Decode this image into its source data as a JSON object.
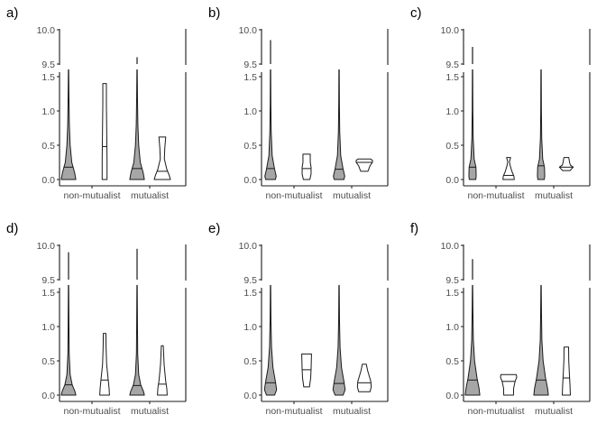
{
  "colors": {
    "mutualist_group_fill": "#a6a6a6",
    "comparison_fill": "#ffffff",
    "stroke": "#1a1a1a",
    "tick_text": "#4d4d4d"
  },
  "chart_data": [
    {
      "type": "violin",
      "panel_label": "a)",
      "categories": [
        "non-mutualist",
        "mutualist"
      ],
      "y_upper_ticks": [
        "9.5",
        "10.0"
      ],
      "y_lower_ticks": [
        "0.0",
        "0.5",
        "1.0",
        "1.5"
      ],
      "y_upper_range": [
        9.5,
        10.0
      ],
      "y_lower_range": [
        0.0,
        1.5
      ],
      "violins": [
        {
          "category": "non-mutualist",
          "fill": "filled",
          "min": 0.0,
          "max": 1.6,
          "median": 0.18,
          "profile": [
            [
              0,
              0.9
            ],
            [
              0.1,
              0.75
            ],
            [
              0.25,
              0.4
            ],
            [
              0.5,
              0.2
            ],
            [
              0.8,
              0.1
            ],
            [
              1.2,
              0.05
            ],
            [
              1.6,
              0.02
            ]
          ]
        },
        {
          "category": "non-mutualist",
          "fill": "open",
          "min": 0.0,
          "max": 1.4,
          "median": 0.48,
          "profile": [
            [
              0,
              0.3
            ],
            [
              0.3,
              0.3
            ],
            [
              0.7,
              0.26
            ],
            [
              1.1,
              0.22
            ],
            [
              1.4,
              0.22
            ]
          ]
        },
        {
          "category": "mutualist",
          "fill": "filled",
          "min": 0.0,
          "max": 1.6,
          "upper_max": 9.6,
          "median": 0.16,
          "profile": [
            [
              0,
              0.9
            ],
            [
              0.1,
              0.75
            ],
            [
              0.25,
              0.4
            ],
            [
              0.5,
              0.2
            ],
            [
              0.8,
              0.1
            ],
            [
              1.2,
              0.05
            ],
            [
              1.6,
              0.02
            ]
          ]
        },
        {
          "category": "mutualist",
          "fill": "open",
          "min": 0.0,
          "max": 0.62,
          "median": 0.12,
          "profile": [
            [
              0,
              1.0
            ],
            [
              0.06,
              0.85
            ],
            [
              0.15,
              0.55
            ],
            [
              0.3,
              0.25
            ],
            [
              0.45,
              0.3
            ],
            [
              0.62,
              0.42
            ]
          ]
        }
      ]
    },
    {
      "type": "violin",
      "panel_label": "b)",
      "categories": [
        "non-mutualist",
        "mutualist"
      ],
      "y_upper_ticks": [
        "9.5",
        "10.0"
      ],
      "y_lower_ticks": [
        "0.0",
        "0.5",
        "1.0",
        "1.5"
      ],
      "y_upper_range": [
        9.5,
        10.0
      ],
      "y_lower_range": [
        0.0,
        1.5
      ],
      "violins": [
        {
          "category": "non-mutualist",
          "fill": "filled",
          "min": 0.0,
          "max": 1.6,
          "upper_max": 9.85,
          "median": 0.16,
          "profile": [
            [
              0,
              0.6
            ],
            [
              0.05,
              0.7
            ],
            [
              0.15,
              0.5
            ],
            [
              0.35,
              0.2
            ],
            [
              0.7,
              0.08
            ],
            [
              1.1,
              0.04
            ],
            [
              1.6,
              0.02
            ]
          ]
        },
        {
          "category": "non-mutualist",
          "fill": "open",
          "min": 0.0,
          "max": 0.37,
          "median": 0.16,
          "profile": [
            [
              0,
              0.4
            ],
            [
              0.08,
              0.55
            ],
            [
              0.18,
              0.55
            ],
            [
              0.25,
              0.45
            ],
            [
              0.37,
              0.45
            ]
          ]
        },
        {
          "category": "mutualist",
          "fill": "filled",
          "min": 0.0,
          "max": 1.6,
          "median": 0.15,
          "profile": [
            [
              0,
              0.6
            ],
            [
              0.05,
              0.7
            ],
            [
              0.15,
              0.5
            ],
            [
              0.35,
              0.2
            ],
            [
              0.7,
              0.08
            ],
            [
              1.1,
              0.04
            ],
            [
              1.6,
              0.02
            ]
          ]
        },
        {
          "category": "mutualist",
          "fill": "open",
          "min": 0.12,
          "max": 0.3,
          "median": 0.25,
          "profile": [
            [
              0.12,
              0.45
            ],
            [
              0.2,
              0.7
            ],
            [
              0.25,
              1.0
            ],
            [
              0.28,
              1.0
            ],
            [
              0.3,
              0.75
            ]
          ]
        }
      ]
    },
    {
      "type": "violin",
      "panel_label": "c)",
      "categories": [
        "non-mutualist",
        "mutualist"
      ],
      "y_upper_ticks": [
        "9.5",
        "10.0"
      ],
      "y_lower_ticks": [
        "0.0",
        "0.5",
        "1.0",
        "1.5"
      ],
      "y_upper_range": [
        9.5,
        10.0
      ],
      "y_lower_range": [
        0.0,
        1.5
      ],
      "violins": [
        {
          "category": "non-mutualist",
          "fill": "filled",
          "min": 0.0,
          "max": 1.6,
          "upper_max": 9.75,
          "median": 0.18,
          "profile": [
            [
              0,
              0.4
            ],
            [
              0.05,
              0.45
            ],
            [
              0.18,
              0.42
            ],
            [
              0.3,
              0.2
            ],
            [
              0.6,
              0.08
            ],
            [
              1.0,
              0.04
            ],
            [
              1.6,
              0.02
            ]
          ]
        },
        {
          "category": "non-mutualist",
          "fill": "open",
          "min": 0.0,
          "max": 0.32,
          "median": 0.06,
          "profile": [
            [
              0,
              0.7
            ],
            [
              0.05,
              0.65
            ],
            [
              0.12,
              0.4
            ],
            [
              0.2,
              0.2
            ],
            [
              0.26,
              0.1
            ],
            [
              0.32,
              0.25
            ]
          ]
        },
        {
          "category": "mutualist",
          "fill": "filled",
          "min": 0.0,
          "max": 1.6,
          "median": 0.2,
          "profile": [
            [
              0,
              0.4
            ],
            [
              0.05,
              0.45
            ],
            [
              0.18,
              0.42
            ],
            [
              0.3,
              0.2
            ],
            [
              0.6,
              0.08
            ],
            [
              1.0,
              0.04
            ],
            [
              1.6,
              0.02
            ]
          ]
        },
        {
          "category": "mutualist",
          "fill": "open",
          "min": 0.13,
          "max": 0.32,
          "median": 0.18,
          "profile": [
            [
              0.13,
              0.45
            ],
            [
              0.18,
              0.85
            ],
            [
              0.21,
              0.5
            ],
            [
              0.25,
              0.4
            ],
            [
              0.32,
              0.3
            ]
          ]
        }
      ]
    },
    {
      "type": "violin",
      "panel_label": "d)",
      "categories": [
        "non-mutualist",
        "mutualist"
      ],
      "y_upper_ticks": [
        "9.5",
        "10.0"
      ],
      "y_lower_ticks": [
        "0.0",
        "0.5",
        "1.0",
        "1.5"
      ],
      "y_upper_range": [
        9.5,
        10.0
      ],
      "y_lower_range": [
        0.0,
        1.5
      ],
      "violins": [
        {
          "category": "non-mutualist",
          "fill": "filled",
          "min": 0.0,
          "max": 1.6,
          "upper_max": 9.9,
          "median": 0.15,
          "profile": [
            [
              0,
              0.9
            ],
            [
              0.05,
              0.8
            ],
            [
              0.15,
              0.45
            ],
            [
              0.3,
              0.2
            ],
            [
              0.6,
              0.08
            ],
            [
              1.0,
              0.05
            ],
            [
              1.6,
              0.02
            ]
          ]
        },
        {
          "category": "non-mutualist",
          "fill": "open",
          "min": 0.0,
          "max": 0.9,
          "median": 0.22,
          "profile": [
            [
              0,
              0.6
            ],
            [
              0.1,
              0.55
            ],
            [
              0.22,
              0.45
            ],
            [
              0.45,
              0.25
            ],
            [
              0.7,
              0.18
            ],
            [
              0.9,
              0.16
            ]
          ]
        },
        {
          "category": "mutualist",
          "fill": "filled",
          "min": 0.0,
          "max": 1.6,
          "upper_max": 9.95,
          "median": 0.14,
          "profile": [
            [
              0,
              0.9
            ],
            [
              0.05,
              0.8
            ],
            [
              0.15,
              0.45
            ],
            [
              0.3,
              0.2
            ],
            [
              0.6,
              0.08
            ],
            [
              1.0,
              0.05
            ],
            [
              1.6,
              0.02
            ]
          ]
        },
        {
          "category": "mutualist",
          "fill": "open",
          "min": 0.0,
          "max": 0.72,
          "median": 0.16,
          "profile": [
            [
              0,
              0.6
            ],
            [
              0.1,
              0.55
            ],
            [
              0.22,
              0.4
            ],
            [
              0.45,
              0.22
            ],
            [
              0.72,
              0.12
            ]
          ]
        }
      ]
    },
    {
      "type": "violin",
      "panel_label": "e)",
      "categories": [
        "non-mutualist",
        "mutualist"
      ],
      "y_upper_ticks": [
        "9.5",
        "10.0"
      ],
      "y_lower_ticks": [
        "0.0",
        "0.5",
        "1.0",
        "1.5"
      ],
      "y_upper_range": [
        9.5,
        10.0
      ],
      "y_lower_range": [
        0.0,
        1.5
      ],
      "violins": [
        {
          "category": "non-mutualist",
          "fill": "filled",
          "min": 0.0,
          "max": 1.6,
          "median": 0.18,
          "profile": [
            [
              0,
              0.5
            ],
            [
              0.08,
              0.75
            ],
            [
              0.2,
              0.6
            ],
            [
              0.4,
              0.3
            ],
            [
              0.7,
              0.12
            ],
            [
              1.1,
              0.05
            ],
            [
              1.6,
              0.02
            ]
          ]
        },
        {
          "category": "non-mutualist",
          "fill": "open",
          "min": 0.12,
          "max": 0.6,
          "median": 0.37,
          "profile": [
            [
              0.12,
              0.35
            ],
            [
              0.25,
              0.5
            ],
            [
              0.37,
              0.55
            ],
            [
              0.5,
              0.58
            ],
            [
              0.6,
              0.6
            ]
          ]
        },
        {
          "category": "mutualist",
          "fill": "filled",
          "min": 0.0,
          "max": 1.6,
          "median": 0.17,
          "profile": [
            [
              0,
              0.5
            ],
            [
              0.08,
              0.75
            ],
            [
              0.2,
              0.6
            ],
            [
              0.4,
              0.3
            ],
            [
              0.7,
              0.12
            ],
            [
              1.1,
              0.05
            ],
            [
              1.6,
              0.02
            ]
          ]
        },
        {
          "category": "mutualist",
          "fill": "open",
          "min": 0.05,
          "max": 0.45,
          "median": 0.18,
          "profile": [
            [
              0.05,
              0.7
            ],
            [
              0.12,
              0.85
            ],
            [
              0.2,
              0.8
            ],
            [
              0.28,
              0.6
            ],
            [
              0.36,
              0.4
            ],
            [
              0.45,
              0.25
            ]
          ]
        }
      ]
    },
    {
      "type": "violin",
      "panel_label": "f)",
      "categories": [
        "non-mutualist",
        "mutualist"
      ],
      "y_upper_ticks": [
        "9.5",
        "10.0"
      ],
      "y_lower_ticks": [
        "0.0",
        "0.5",
        "1.0",
        "1.5"
      ],
      "y_upper_range": [
        9.5,
        10.0
      ],
      "y_lower_range": [
        0.0,
        1.5
      ],
      "violins": [
        {
          "category": "non-mutualist",
          "fill": "filled",
          "min": 0.0,
          "max": 1.6,
          "upper_max": 9.8,
          "median": 0.22,
          "profile": [
            [
              0,
              0.9
            ],
            [
              0.1,
              0.8
            ],
            [
              0.25,
              0.55
            ],
            [
              0.5,
              0.25
            ],
            [
              0.8,
              0.1
            ],
            [
              1.2,
              0.05
            ],
            [
              1.6,
              0.02
            ]
          ]
        },
        {
          "category": "non-mutualist",
          "fill": "open",
          "min": 0.0,
          "max": 0.3,
          "median": 0.2,
          "profile": [
            [
              0,
              0.6
            ],
            [
              0.1,
              0.62
            ],
            [
              0.2,
              0.8
            ],
            [
              0.26,
              1.0
            ],
            [
              0.3,
              0.95
            ]
          ]
        },
        {
          "category": "mutualist",
          "fill": "filled",
          "min": 0.0,
          "max": 1.6,
          "median": 0.22,
          "profile": [
            [
              0,
              0.9
            ],
            [
              0.1,
              0.8
            ],
            [
              0.25,
              0.55
            ],
            [
              0.5,
              0.25
            ],
            [
              0.8,
              0.1
            ],
            [
              1.2,
              0.05
            ],
            [
              1.6,
              0.02
            ]
          ]
        },
        {
          "category": "mutualist",
          "fill": "open",
          "min": 0.0,
          "max": 0.7,
          "median": 0.25,
          "profile": [
            [
              0,
              0.5
            ],
            [
              0.15,
              0.45
            ],
            [
              0.3,
              0.38
            ],
            [
              0.5,
              0.3
            ],
            [
              0.7,
              0.28
            ]
          ]
        }
      ]
    }
  ]
}
